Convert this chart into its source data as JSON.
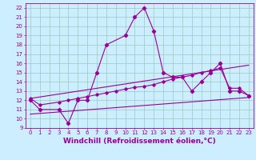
{
  "xlabel": "Windchill (Refroidissement éolien,°C)",
  "background_color": "#cceeff",
  "grid_color": "#99ccbb",
  "line_color": "#990099",
  "xlim": [
    -0.5,
    23.5
  ],
  "ylim": [
    9,
    22.5
  ],
  "xticks": [
    0,
    1,
    2,
    3,
    4,
    5,
    6,
    7,
    8,
    9,
    10,
    11,
    12,
    13,
    14,
    15,
    16,
    17,
    18,
    19,
    20,
    21,
    22,
    23
  ],
  "yticks": [
    9,
    10,
    11,
    12,
    13,
    14,
    15,
    16,
    17,
    18,
    19,
    20,
    21,
    22
  ],
  "series1_x": [
    0,
    1,
    3,
    4,
    5,
    6,
    7,
    8,
    10,
    11,
    12,
    13,
    14,
    15,
    16,
    17,
    18,
    19,
    20,
    21,
    22,
    23
  ],
  "series1_y": [
    12,
    11,
    11,
    9.5,
    12,
    12,
    15,
    18,
    19,
    21,
    22,
    19.5,
    15,
    14.5,
    14.5,
    13,
    14,
    15,
    16,
    13,
    13,
    12.5
  ],
  "series2_x": [
    0,
    1,
    3,
    4,
    5,
    6,
    7,
    8,
    9,
    10,
    11,
    12,
    13,
    14,
    15,
    16,
    17,
    18,
    19,
    20,
    21,
    22,
    23
  ],
  "series2_y": [
    12.2,
    11.5,
    11.8,
    12.0,
    12.2,
    12.4,
    12.6,
    12.8,
    13.0,
    13.2,
    13.4,
    13.5,
    13.7,
    14.0,
    14.3,
    14.5,
    14.7,
    15.0,
    15.2,
    15.5,
    13.3,
    13.3,
    12.5
  ],
  "series3_x": [
    0,
    23
  ],
  "series3_y": [
    10.5,
    12.3
  ],
  "series4_x": [
    0,
    23
  ],
  "series4_y": [
    12.2,
    15.8
  ],
  "xlabel_fontsize": 6.5,
  "tick_fontsize": 5.0
}
